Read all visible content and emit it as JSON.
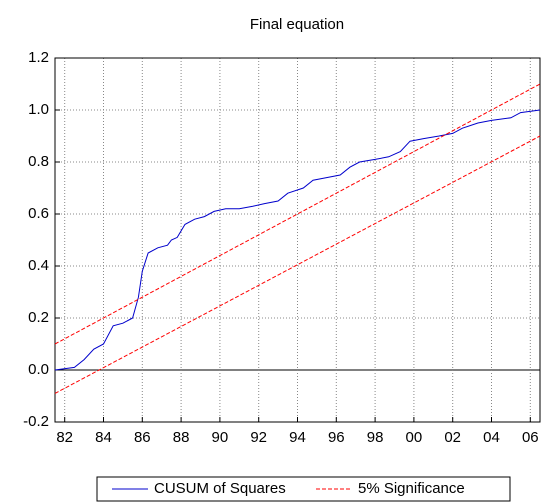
{
  "chart_data": {
    "type": "line",
    "title": "Final equation",
    "xlim": [
      1981.5,
      2006.5
    ],
    "xticks": [
      {
        "value": 1982,
        "label": "82"
      },
      {
        "value": 1984,
        "label": "84"
      },
      {
        "value": 1986,
        "label": "86"
      },
      {
        "value": 1988,
        "label": "88"
      },
      {
        "value": 1990,
        "label": "90"
      },
      {
        "value": 1992,
        "label": "92"
      },
      {
        "value": 1994,
        "label": "94"
      },
      {
        "value": 1996,
        "label": "96"
      },
      {
        "value": 1998,
        "label": "98"
      },
      {
        "value": 2000,
        "label": "00"
      },
      {
        "value": 2002,
        "label": "02"
      },
      {
        "value": 2004,
        "label": "04"
      },
      {
        "value": 2006,
        "label": "06"
      }
    ],
    "ylim": [
      -0.2,
      1.2
    ],
    "yticks": [
      -0.2,
      {
        "value": 0,
        "label": "0.0"
      },
      0.2,
      0.4,
      0.6,
      0.8,
      {
        "value": 1,
        "label": "1.0"
      },
      1.2
    ],
    "grid": true,
    "series": [
      {
        "name": "CUSUM of Squares",
        "color": "#0000cc",
        "x": [
          1981.5,
          1982.5,
          1983.0,
          1983.5,
          1984.0,
          1984.5,
          1985.0,
          1985.5,
          1985.8,
          1986.0,
          1986.3,
          1986.8,
          1987.3,
          1987.5,
          1987.8,
          1988.2,
          1988.7,
          1989.2,
          1989.7,
          1990.3,
          1991.0,
          1991.7,
          1992.3,
          1993.0,
          1993.5,
          1994.3,
          1994.8,
          1995.5,
          1996.2,
          1996.7,
          1997.2,
          1998.0,
          1998.7,
          1999.3,
          1999.8,
          2000.5,
          2001.3,
          2002.0,
          2002.5,
          2003.3,
          2004.0,
          2005.0,
          2005.5,
          2006.5
        ],
        "values": [
          0.0,
          0.01,
          0.04,
          0.08,
          0.1,
          0.17,
          0.18,
          0.2,
          0.28,
          0.38,
          0.45,
          0.47,
          0.48,
          0.5,
          0.51,
          0.56,
          0.58,
          0.59,
          0.61,
          0.62,
          0.62,
          0.63,
          0.64,
          0.65,
          0.68,
          0.7,
          0.73,
          0.74,
          0.75,
          0.78,
          0.8,
          0.81,
          0.82,
          0.84,
          0.88,
          0.89,
          0.9,
          0.91,
          0.93,
          0.95,
          0.96,
          0.97,
          0.99,
          1.0
        ]
      },
      {
        "name": "5% Significance",
        "color": "#ff0000",
        "x": [
          1981.5,
          2006.5
        ],
        "values": [
          0.1,
          1.1
        ],
        "lower": [
          -0.09,
          0.9
        ]
      }
    ]
  }
}
